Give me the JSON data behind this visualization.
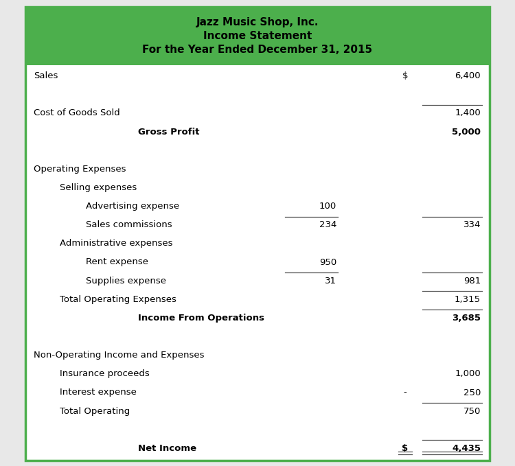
{
  "title_line1": "Jazz Music Shop, Inc.",
  "title_line2": "Income Statement",
  "title_line3": "For the Year Ended December 31, 2015",
  "header_bg_color": "#4caf4c",
  "header_text_color": "#000000",
  "bg_color": "#ffffff",
  "border_color": "#4caf4c",
  "outer_bg_color": "#e8e8e8",
  "rows": [
    {
      "label": "Sales",
      "indent": 0,
      "col1": "",
      "col2": "$",
      "col3": "6,400",
      "bold": false,
      "line_above_col1": false,
      "line_above_col3": false,
      "double_line_col3": false
    },
    {
      "label": "",
      "indent": 0,
      "col1": "",
      "col2": "",
      "col3": "",
      "bold": false,
      "line_above_col1": false,
      "line_above_col3": false,
      "double_line_col3": false
    },
    {
      "label": "Cost of Goods Sold",
      "indent": 0,
      "col1": "",
      "col2": "",
      "col3": "1,400",
      "bold": false,
      "line_above_col1": false,
      "line_above_col3": true,
      "double_line_col3": false
    },
    {
      "label": "Gross Profit",
      "indent": 4,
      "col1": "",
      "col2": "",
      "col3": "5,000",
      "bold": true,
      "line_above_col1": false,
      "line_above_col3": false,
      "double_line_col3": false
    },
    {
      "label": "",
      "indent": 0,
      "col1": "",
      "col2": "",
      "col3": "",
      "bold": false,
      "line_above_col1": false,
      "line_above_col3": false,
      "double_line_col3": false
    },
    {
      "label": "Operating Expenses",
      "indent": 0,
      "col1": "",
      "col2": "",
      "col3": "",
      "bold": false,
      "line_above_col1": false,
      "line_above_col3": false,
      "double_line_col3": false
    },
    {
      "label": "Selling expenses",
      "indent": 1,
      "col1": "",
      "col2": "",
      "col3": "",
      "bold": false,
      "line_above_col1": false,
      "line_above_col3": false,
      "double_line_col3": false
    },
    {
      "label": "Advertising expense",
      "indent": 2,
      "col1": "100",
      "col2": "",
      "col3": "",
      "bold": false,
      "line_above_col1": false,
      "line_above_col3": false,
      "double_line_col3": false
    },
    {
      "label": "Sales commissions",
      "indent": 2,
      "col1": "234",
      "col2": "",
      "col3": "334",
      "bold": false,
      "line_above_col1": true,
      "line_above_col3": true,
      "double_line_col3": false
    },
    {
      "label": "Administrative expenses",
      "indent": 1,
      "col1": "",
      "col2": "",
      "col3": "",
      "bold": false,
      "line_above_col1": false,
      "line_above_col3": false,
      "double_line_col3": false
    },
    {
      "label": "Rent expense",
      "indent": 2,
      "col1": "950",
      "col2": "",
      "col3": "",
      "bold": false,
      "line_above_col1": false,
      "line_above_col3": false,
      "double_line_col3": false
    },
    {
      "label": "Supplies expense",
      "indent": 2,
      "col1": "31",
      "col2": "",
      "col3": "981",
      "bold": false,
      "line_above_col1": true,
      "line_above_col3": true,
      "double_line_col3": false
    },
    {
      "label": "Total Operating Expenses",
      "indent": 1,
      "col1": "",
      "col2": "",
      "col3": "1,315",
      "bold": false,
      "line_above_col1": false,
      "line_above_col3": true,
      "double_line_col3": false
    },
    {
      "label": "Income From Operations",
      "indent": 4,
      "col1": "",
      "col2": "",
      "col3": "3,685",
      "bold": true,
      "line_above_col1": false,
      "line_above_col3": true,
      "double_line_col3": false
    },
    {
      "label": "",
      "indent": 0,
      "col1": "",
      "col2": "",
      "col3": "",
      "bold": false,
      "line_above_col1": false,
      "line_above_col3": false,
      "double_line_col3": false
    },
    {
      "label": "Non-Operating Income and Expenses",
      "indent": 0,
      "col1": "",
      "col2": "",
      "col3": "",
      "bold": false,
      "line_above_col1": false,
      "line_above_col3": false,
      "double_line_col3": false
    },
    {
      "label": "Insurance proceeds",
      "indent": 1,
      "col1": "",
      "col2": "",
      "col3": "1,000",
      "bold": false,
      "line_above_col1": false,
      "line_above_col3": false,
      "double_line_col3": false
    },
    {
      "label": "Interest expense",
      "indent": 1,
      "col1": "",
      "col2": "-",
      "col3": "250",
      "bold": false,
      "line_above_col1": false,
      "line_above_col3": false,
      "double_line_col3": false
    },
    {
      "label": "Total Operating",
      "indent": 1,
      "col1": "",
      "col2": "",
      "col3": "750",
      "bold": false,
      "line_above_col1": false,
      "line_above_col3": true,
      "double_line_col3": false
    },
    {
      "label": "",
      "indent": 0,
      "col1": "",
      "col2": "",
      "col3": "",
      "bold": false,
      "line_above_col1": false,
      "line_above_col3": false,
      "double_line_col3": false
    },
    {
      "label": "Net Income",
      "indent": 4,
      "col1": "",
      "col2": "$",
      "col3": "4,435",
      "bold": true,
      "line_above_col1": false,
      "line_above_col3": true,
      "double_line_col3": true
    }
  ],
  "figsize": [
    7.5,
    6.79
  ],
  "dpi": 100
}
